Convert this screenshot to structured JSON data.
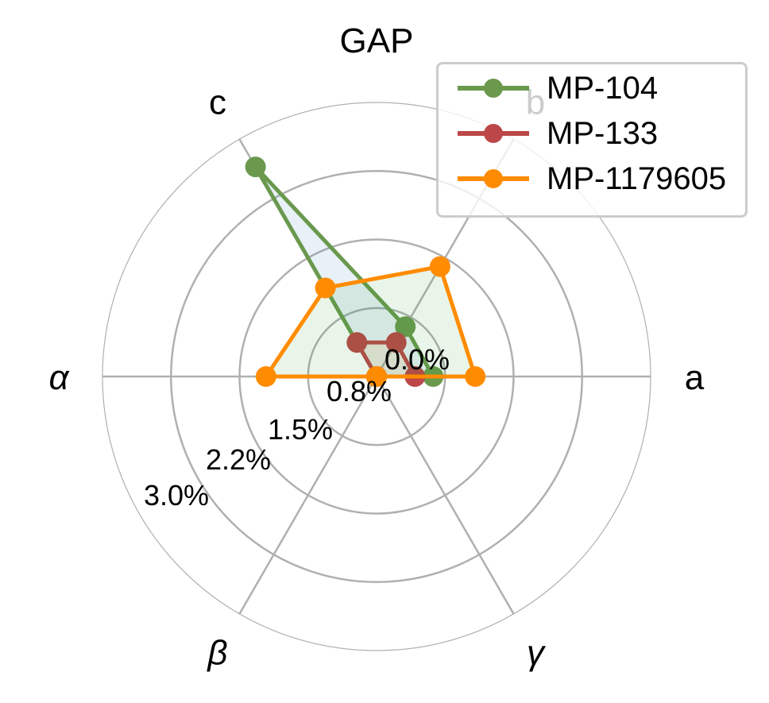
{
  "chart_data": {
    "type": "radar",
    "title": "GAP",
    "axes": [
      "a",
      "b",
      "c",
      "α",
      "β",
      "γ"
    ],
    "radial_ticks": [
      "0.0%",
      "0.8%",
      "1.5%",
      "2.2%",
      "3.0%"
    ],
    "radial_range": [
      0,
      3.0
    ],
    "grid": true,
    "legend_position": "top-right",
    "series": [
      {
        "name": "MP-104",
        "color": "#6a994e",
        "fill": "#1f77b4",
        "values": [
          0.62,
          0.63,
          2.65,
          0,
          0,
          0
        ]
      },
      {
        "name": "MP-133",
        "color": "#bc4749",
        "fill": "#ff7f0e",
        "values": [
          0.42,
          0.43,
          0.43,
          0,
          0,
          0
        ]
      },
      {
        "name": "MP-1179605",
        "color": "#ff8c00",
        "fill": "#2ca02c",
        "values": [
          1.08,
          1.39,
          1.12,
          1.21,
          0,
          0
        ]
      }
    ]
  }
}
